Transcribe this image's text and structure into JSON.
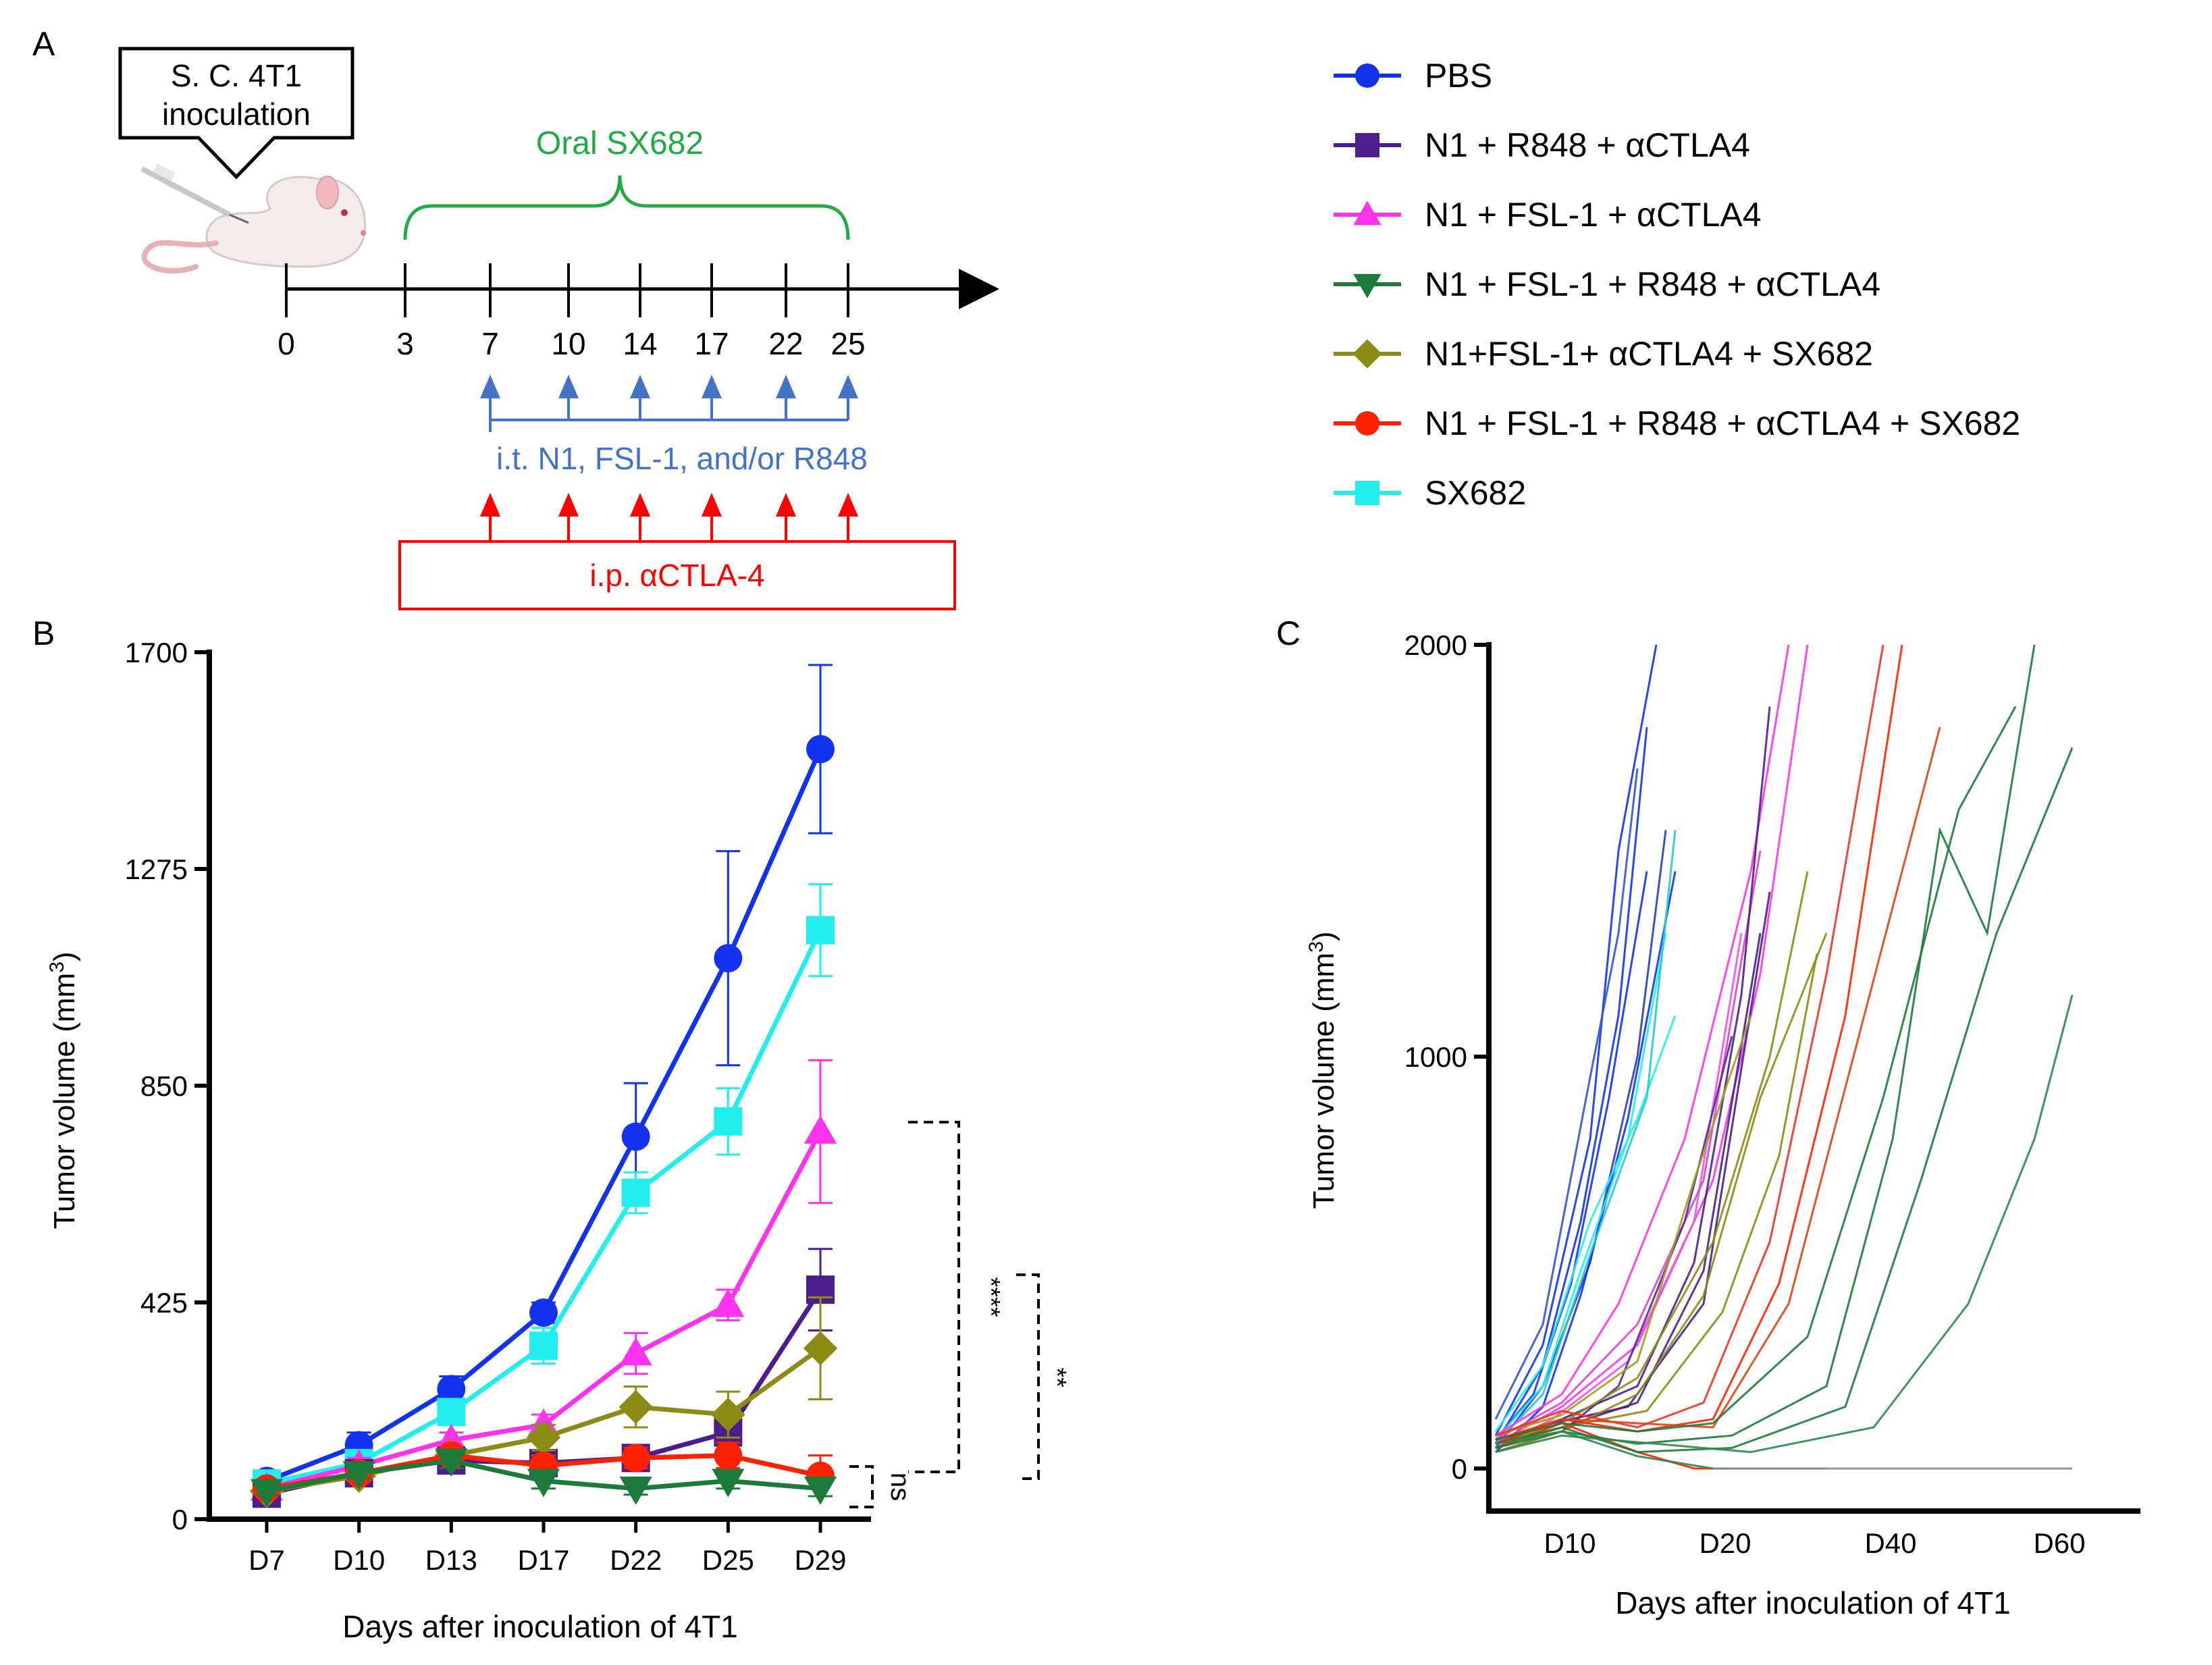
{
  "panel_labels": {
    "a": "A",
    "b": "B",
    "c": "C"
  },
  "schematic": {
    "inoculation_box": [
      "S. C. 4T1",
      "inoculation"
    ],
    "oral_label_prefix": "Oral ",
    "oral_label_drug": "SX682",
    "timeline_days": [
      "0",
      "3",
      "7",
      "10",
      "14",
      "17",
      "22",
      "25"
    ],
    "it_label": "i.t. N1, FSL-1, and/or R848",
    "ip_label": "i.p. αCTLA-4",
    "colors": {
      "oral": "#22aa44",
      "it": "#4472c4",
      "ip": "#ff0000",
      "timeline": "#000000"
    }
  },
  "legend": [
    {
      "label": "PBS",
      "color": "#1133ee",
      "marker": "circle"
    },
    {
      "label": "N1 + R848 + αCTLA4",
      "color": "#4b1e8c",
      "marker": "square"
    },
    {
      "label": "N1 + FSL-1 + αCTLA4",
      "color": "#ff33ee",
      "marker": "triangle-up"
    },
    {
      "label": "N1 + FSL-1 + R848 + αCTLA4",
      "color": "#1e7a3c",
      "marker": "triangle-down"
    },
    {
      "label": "N1+FSL-1+ αCTLA4 + SX682",
      "color": "#8c8c14",
      "marker": "diamond"
    },
    {
      "label": "N1 + FSL-1 + R848 + αCTLA4 + SX682",
      "color": "#ff2200",
      "marker": "circle"
    },
    {
      "label": "SX682",
      "color": "#22eeee",
      "marker": "square"
    }
  ],
  "chart_data": [
    {
      "type": "line",
      "panel": "B",
      "ylabel_main": "Tumor volume (mm",
      "ylabel_sup": "3",
      "ylabel_end": ")",
      "xlabel": "Days after inoculation of 4T1",
      "categories": [
        "D7",
        "D10",
        "D13",
        "D17",
        "D22",
        "D25",
        "D29"
      ],
      "yticks": [
        "0",
        "425",
        "850",
        "1275",
        "1700"
      ],
      "ylim": [
        0,
        1700
      ],
      "series": [
        {
          "name": "PBS",
          "color": "#1133ee",
          "marker": "circle",
          "values": [
            75,
            145,
            255,
            405,
            750,
            1100,
            1510
          ],
          "errors": [
            10,
            25,
            25,
            20,
            105,
            210,
            165
          ]
        },
        {
          "name": "SX682",
          "color": "#22eeee",
          "marker": "square",
          "values": [
            70,
            110,
            210,
            340,
            640,
            780,
            1155
          ],
          "errors": [
            10,
            15,
            25,
            35,
            40,
            65,
            90
          ]
        },
        {
          "name": "N1 + FSL-1 + αCTLA4",
          "color": "#ff33ee",
          "marker": "triangle-up",
          "values": [
            60,
            105,
            155,
            185,
            325,
            420,
            760
          ],
          "errors": [
            10,
            15,
            15,
            20,
            40,
            30,
            140
          ]
        },
        {
          "name": "N1 + R848 + αCTLA4",
          "color": "#4b1e8c",
          "marker": "square",
          "values": [
            50,
            90,
            115,
            110,
            120,
            170,
            450
          ],
          "errors": [
            8,
            10,
            15,
            15,
            20,
            40,
            80
          ]
        },
        {
          "name": "N1+FSL-1+ αCTLA4 + SX682",
          "color": "#8c8c14",
          "marker": "diamond",
          "values": [
            55,
            85,
            125,
            160,
            220,
            205,
            335
          ],
          "errors": [
            8,
            10,
            15,
            25,
            40,
            45,
            100
          ]
        },
        {
          "name": "N1 + FSL-1 + R848 + αCTLA4 + SX682",
          "color": "#ff2200",
          "marker": "circle",
          "values": [
            60,
            90,
            125,
            105,
            120,
            125,
            85
          ],
          "errors": [
            8,
            10,
            15,
            20,
            20,
            25,
            40
          ]
        },
        {
          "name": "N1 + FSL-1 + R848 + αCTLA4",
          "color": "#1e7a3c",
          "marker": "triangle-down",
          "values": [
            55,
            90,
            115,
            75,
            60,
            75,
            60
          ],
          "errors": [
            8,
            10,
            15,
            15,
            12,
            15,
            15
          ]
        }
      ],
      "significance": [
        {
          "label": "****"
        },
        {
          "label": "**"
        },
        {
          "label": "ns"
        }
      ]
    },
    {
      "type": "line",
      "panel": "C",
      "subtype": "spider",
      "ylabel_main": "Tumor volume (mm",
      "ylabel_sup": "3",
      "ylabel_end": ")",
      "xlabel": "Days after inoculation of 4T1",
      "xtick_labels": [
        "D10",
        "D20",
        "D40",
        "D60"
      ],
      "yticks": [
        "0",
        "1000",
        "2000"
      ],
      "ylim": [
        0,
        2000
      ],
      "series": [
        {
          "color": "#1133ee",
          "x": [
            5,
            10,
            15,
            18,
            22
          ],
          "values": [
            80,
            300,
            800,
            1500,
            2000
          ]
        },
        {
          "color": "#1133ee",
          "x": [
            5,
            10,
            14,
            18,
            21
          ],
          "values": [
            60,
            250,
            600,
            1100,
            1800
          ]
        },
        {
          "color": "#2a3db8",
          "x": [
            5,
            10,
            15,
            20,
            23
          ],
          "values": [
            50,
            200,
            500,
            1000,
            1550
          ]
        },
        {
          "color": "#1133ee",
          "x": [
            5,
            9,
            13,
            17,
            21
          ],
          "values": [
            70,
            180,
            450,
            900,
            1450
          ]
        },
        {
          "color": "#3355cc",
          "x": [
            5,
            10,
            15,
            18,
            20
          ],
          "values": [
            120,
            350,
            950,
            1300,
            1700
          ]
        },
        {
          "color": "#1133ee",
          "x": [
            5,
            10,
            14,
            19,
            24
          ],
          "values": [
            40,
            150,
            420,
            850,
            1450
          ]
        },
        {
          "color": "#22eeee",
          "x": [
            5,
            10,
            15,
            20,
            24
          ],
          "values": [
            90,
            250,
            600,
            850,
            1100
          ]
        },
        {
          "color": "#22eeee",
          "x": [
            5,
            10,
            14,
            19,
            23
          ],
          "values": [
            70,
            200,
            480,
            800,
            1300
          ]
        },
        {
          "color": "#22cccc",
          "x": [
            5,
            10,
            15,
            21,
            24
          ],
          "values": [
            60,
            180,
            520,
            900,
            1550
          ]
        },
        {
          "color": "#ff33ee",
          "x": [
            5,
            12,
            20,
            28,
            33,
            38
          ],
          "values": [
            60,
            150,
            300,
            700,
            1200,
            2000
          ]
        },
        {
          "color": "#ff33ee",
          "x": [
            5,
            12,
            18,
            25,
            32,
            36
          ],
          "values": [
            80,
            180,
            400,
            800,
            1450,
            2000
          ]
        },
        {
          "color": "#ee55dd",
          "x": [
            5,
            11,
            19,
            26,
            31
          ],
          "values": [
            50,
            120,
            260,
            600,
            1300
          ]
        },
        {
          "color": "#dd44cc",
          "x": [
            5,
            12,
            20,
            27,
            33
          ],
          "values": [
            70,
            160,
            350,
            700,
            1500
          ]
        },
        {
          "color": "#4b1e8c",
          "x": [
            5,
            12,
            20,
            26,
            31,
            34
          ],
          "values": [
            60,
            120,
            200,
            500,
            1150,
            1850
          ]
        },
        {
          "color": "#4b1e8c",
          "x": [
            5,
            12,
            20,
            27,
            33
          ],
          "values": [
            50,
            100,
            160,
            480,
            1300
          ]
        },
        {
          "color": "#5a2a9a",
          "x": [
            5,
            12,
            18,
            25,
            30
          ],
          "values": [
            40,
            90,
            200,
            600,
            1050
          ]
        },
        {
          "color": "#4b1e8c",
          "x": [
            5,
            11,
            19,
            27,
            34
          ],
          "values": [
            70,
            110,
            150,
            400,
            1400
          ]
        },
        {
          "color": "#8c8c14",
          "x": [
            5,
            12,
            20,
            28,
            34,
            38
          ],
          "values": [
            60,
            110,
            220,
            550,
            1000,
            1450
          ]
        },
        {
          "color": "#8c8c14",
          "x": [
            5,
            12,
            20,
            27,
            33,
            40
          ],
          "values": [
            40,
            90,
            180,
            420,
            900,
            1300
          ]
        },
        {
          "color": "#a0a020",
          "x": [
            5,
            12,
            20,
            26,
            32
          ],
          "values": [
            80,
            130,
            260,
            700,
            1100
          ]
        },
        {
          "color": "#8c8c14",
          "x": [
            5,
            12,
            21,
            29,
            35,
            39
          ],
          "values": [
            50,
            100,
            140,
            380,
            760,
            1250
          ]
        },
        {
          "color": "#ff2200",
          "x": [
            5,
            12,
            20,
            28,
            35,
            42,
            48
          ],
          "values": [
            60,
            120,
            90,
            120,
            450,
            1100,
            2000
          ]
        },
        {
          "color": "#ee3322",
          "x": [
            5,
            12,
            20,
            27,
            34,
            40,
            46
          ],
          "values": [
            80,
            140,
            100,
            160,
            550,
            1200,
            2000
          ]
        },
        {
          "color": "#ff2200",
          "x": [
            5,
            12,
            20,
            26,
            30
          ],
          "values": [
            50,
            110,
            40,
            0,
            0
          ]
        },
        {
          "color": "#dd4411",
          "x": [
            5,
            12,
            20,
            28,
            36,
            44,
            52
          ],
          "values": [
            70,
            120,
            110,
            100,
            400,
            1100,
            1800
          ]
        },
        {
          "color": "#1e7a3c",
          "x": [
            5,
            12,
            20,
            30,
            40,
            47,
            52,
            57,
            62
          ],
          "values": [
            50,
            90,
            60,
            80,
            200,
            800,
            1550,
            1300,
            2000
          ]
        },
        {
          "color": "#1e7a3c",
          "x": [
            5,
            12,
            20,
            30,
            42,
            50,
            58,
            66
          ],
          "values": [
            60,
            100,
            40,
            50,
            150,
            700,
            1300,
            1750
          ]
        },
        {
          "color": "#2a8a4a",
          "x": [
            5,
            12,
            22,
            32,
            45,
            55,
            62,
            66
          ],
          "values": [
            40,
            80,
            60,
            40,
            100,
            400,
            800,
            1150
          ]
        },
        {
          "color": "#1e7a3c",
          "x": [
            5,
            12,
            20,
            28,
            38,
            46,
            54,
            60
          ],
          "values": [
            70,
            110,
            90,
            110,
            320,
            900,
            1600,
            1850
          ]
        },
        {
          "color": "#2a8a4a",
          "x": [
            5,
            12,
            20,
            28,
            35,
            40
          ],
          "values": [
            60,
            90,
            30,
            0,
            0,
            0
          ]
        },
        {
          "color": "#888888",
          "x": [
            28,
            40,
            50,
            60,
            66
          ],
          "values": [
            0,
            0,
            0,
            0,
            0
          ]
        }
      ]
    }
  ]
}
